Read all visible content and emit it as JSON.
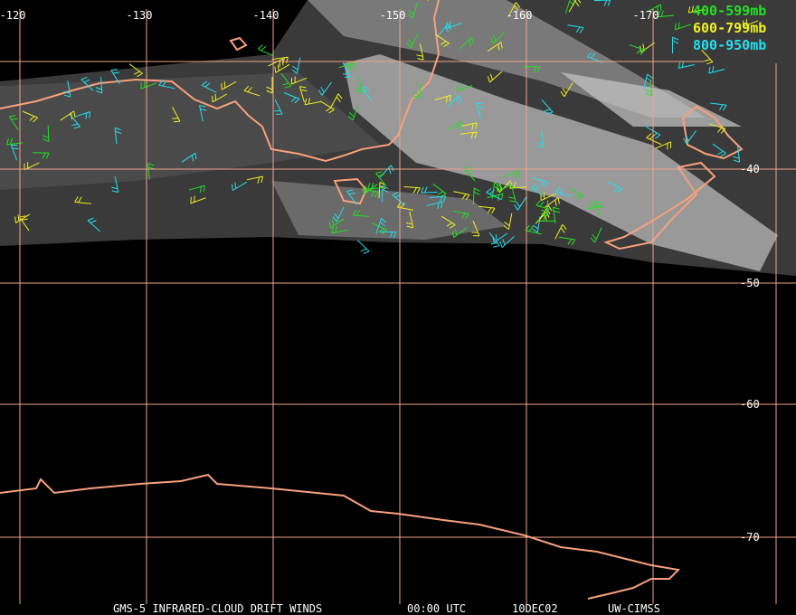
{
  "map": {
    "longitude_labels": [
      "-120",
      "-130",
      "-140",
      "-150",
      "-160",
      "-170"
    ],
    "latitude_labels": [
      "-40",
      "-50",
      "-60",
      "-70"
    ],
    "legend": [
      {
        "label": "400-599mb",
        "color": "#22e022"
      },
      {
        "label": "600-799mb",
        "color": "#f0f020"
      },
      {
        "label": "800-950mb",
        "color": "#20e0f0"
      }
    ],
    "footer": [
      "GMS-5 INFRARED-CLOUD DRIFT WINDS",
      "00:00 UTC",
      "10DEC02",
      "UW-CIMSS"
    ]
  }
}
